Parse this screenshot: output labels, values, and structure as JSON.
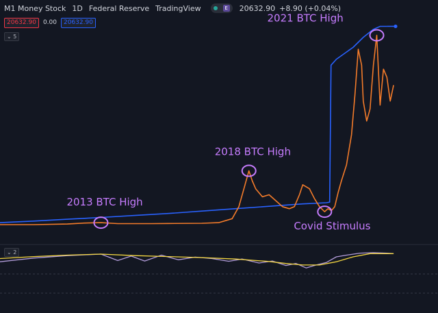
{
  "header": {
    "symbol": "M1 Money Stock",
    "interval": "1D",
    "source": "Federal Reserve",
    "platform": "TradingView",
    "toggle_label": "E",
    "last_value": "20632.90",
    "change": "+8.90 (+0.04%)"
  },
  "values_row": {
    "bid": "20632.90",
    "spread": "0.00",
    "ask": "20632.90"
  },
  "panels": {
    "main_tag": "5",
    "lower_tag": "2"
  },
  "colors": {
    "background": "#131722",
    "m1_line": "#2962ff",
    "btc_line": "#f57c2a",
    "annotation": "#c77dff",
    "indicator_a": "#b39ddb",
    "indicator_b": "#f5d742"
  },
  "chart_data": {
    "type": "line",
    "title": "",
    "xlabel": "",
    "ylabel": "",
    "grid": false,
    "x_range": [
      2010.5,
      2022.3
    ],
    "y_range": [
      0,
      100
    ],
    "series": [
      {
        "name": "M1 Money Stock",
        "x": [
          2010.5,
          2011.5,
          2012.5,
          2013.5,
          2014.5,
          2015.5,
          2016.5,
          2017.5,
          2018.5,
          2019.5,
          2020.2,
          2020.3,
          2020.34,
          2020.5,
          2021.0,
          2021.3,
          2021.6,
          2021.8,
          2022.0
        ],
        "values": [
          1.0,
          1.8,
          2.7,
          3.6,
          4.6,
          5.6,
          6.8,
          8.0,
          9.2,
          10.4,
          11.0,
          11.3,
          80.0,
          83.0,
          89.0,
          94.0,
          98.0,
          99.5,
          99.5
        ]
      },
      {
        "name": "BTC",
        "x": [
          2010.5,
          2011.5,
          2012.5,
          2013.0,
          2013.5,
          2014.0,
          2014.5,
          2015.0,
          2015.5,
          2016.5,
          2017.0,
          2017.4,
          2017.6,
          2017.75,
          2017.9,
          2018.0,
          2018.1,
          2018.3,
          2018.5,
          2018.7,
          2018.9,
          2019.1,
          2019.25,
          2019.4,
          2019.5,
          2019.7,
          2019.85,
          2020.0,
          2020.15,
          2020.25,
          2020.35,
          2020.45,
          2020.55,
          2020.65,
          2020.8,
          2020.95,
          2021.05,
          2021.15,
          2021.25,
          2021.3,
          2021.4,
          2021.5,
          2021.6,
          2021.7,
          2021.8,
          2021.9,
          2022.0,
          2022.1,
          2022.2
        ],
        "values": [
          0.0,
          0.0,
          0.3,
          0.8,
          1.0,
          0.5,
          0.5,
          0.5,
          0.6,
          0.7,
          1.0,
          3.0,
          9.0,
          18.0,
          27.0,
          22.0,
          18.0,
          14.0,
          15.0,
          12.0,
          9.0,
          8.0,
          9.0,
          15.0,
          20.0,
          18.0,
          13.0,
          9.0,
          6.5,
          8.0,
          7.0,
          9.0,
          16.0,
          22.0,
          30.0,
          45.0,
          65.0,
          88.0,
          80.0,
          62.0,
          52.0,
          58.0,
          80.0,
          95.0,
          60.0,
          78.0,
          74.0,
          62.0,
          70.0
        ]
      }
    ],
    "indicator": {
      "type": "line",
      "y_range": [
        0,
        100
      ],
      "series": [
        {
          "x": [
            2010.5,
            2011.5,
            2012.5,
            2013.5,
            2014.0,
            2014.4,
            2014.8,
            2015.3,
            2015.8,
            2016.3,
            2016.8,
            2017.3,
            2017.7,
            2018.2,
            2018.6,
            2019.0,
            2019.3,
            2019.6,
            2019.9,
            2020.2,
            2020.5,
            2020.8,
            2021.2,
            2021.6,
            2022.0,
            2022.2
          ],
          "values": [
            55,
            70,
            80,
            86,
            60,
            78,
            58,
            82,
            63,
            74,
            68,
            57,
            66,
            50,
            58,
            40,
            48,
            30,
            42,
            52,
            75,
            82,
            90,
            92,
            90,
            88
          ]
        },
        {
          "x": [
            2010.5,
            2011.5,
            2012.5,
            2013.5,
            2014.5,
            2015.5,
            2016.5,
            2017.5,
            2018.5,
            2019.0,
            2019.5,
            2020.0,
            2020.5,
            2021.0,
            2021.5,
            2022.0,
            2022.2
          ],
          "values": [
            68,
            76,
            82,
            86,
            80,
            76,
            72,
            66,
            56,
            48,
            42,
            42,
            55,
            75,
            88,
            88,
            88
          ]
        }
      ]
    },
    "annotations": [
      {
        "text": "2013 BTC High",
        "x": 2013.5,
        "y": 1.0
      },
      {
        "text": "2018 BTC High",
        "x": 2017.9,
        "y": 27.0
      },
      {
        "text": "Covid Stimulus",
        "x": 2020.15,
        "y": 6.5
      },
      {
        "text": "2021 BTC High",
        "x": 2021.7,
        "y": 95.0
      }
    ]
  }
}
